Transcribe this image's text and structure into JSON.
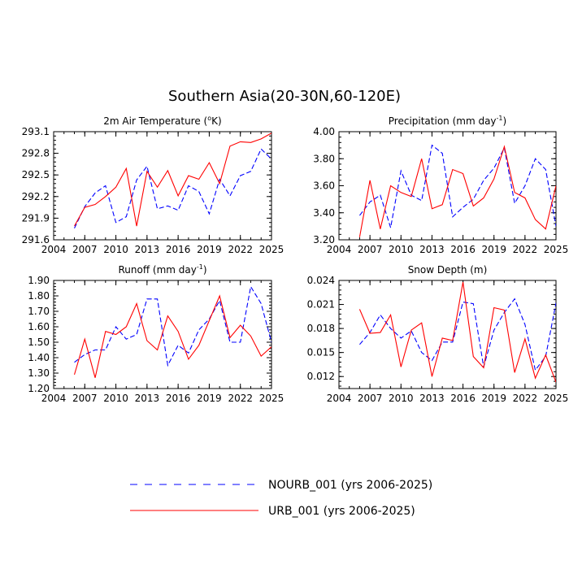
{
  "title": "Southern Asia(20-30N,60-120E)",
  "series_styles": [
    {
      "name": "NOURB_001",
      "color": "#0000ff",
      "dash": "dashed"
    },
    {
      "name": "URB_001",
      "color": "#ff0000",
      "dash": "solid"
    }
  ],
  "legend": {
    "entries": [
      {
        "label": "NOURB_001 (yrs 2006-2025)",
        "color": "#0000ff",
        "dash": "dashed"
      },
      {
        "label": "URB_001 (yrs 2006-2025)",
        "color": "#ff0000",
        "dash": "solid"
      }
    ]
  },
  "chart_data": [
    {
      "type": "line",
      "title": "2m Air Temperature (",
      "title_sup": "o",
      "title_after": "K)",
      "xlim": [
        2004,
        2025
      ],
      "xticks": [
        "2004",
        "2007",
        "2010",
        "2013",
        "2016",
        "2019",
        "2022",
        "2025"
      ],
      "ylim": [
        291.6,
        293.1
      ],
      "yticks": [
        "291.6",
        "291.9",
        "292.2",
        "292.5",
        "292.8",
        "293.1"
      ],
      "x": [
        2006,
        2007,
        2008,
        2009,
        2010,
        2011,
        2012,
        2013,
        2014,
        2015,
        2016,
        2017,
        2018,
        2019,
        2020,
        2021,
        2022,
        2023,
        2024,
        2025
      ],
      "series": [
        {
          "name": "NOURB_001",
          "values": [
            291.76,
            292.06,
            292.25,
            292.35,
            291.84,
            291.92,
            292.43,
            292.62,
            292.03,
            292.07,
            292.01,
            292.35,
            292.27,
            291.96,
            292.44,
            292.21,
            292.49,
            292.55,
            292.86,
            292.72
          ]
        },
        {
          "name": "URB_001",
          "values": [
            291.79,
            292.05,
            292.09,
            292.2,
            292.33,
            292.59,
            291.79,
            292.55,
            292.33,
            292.56,
            292.21,
            292.49,
            292.44,
            292.67,
            292.38,
            292.9,
            292.96,
            292.95,
            293.0,
            293.08
          ]
        }
      ]
    },
    {
      "type": "line",
      "title": "Precipitation (mm day",
      "title_sup": "-1",
      "title_after": ")",
      "xlim": [
        2004,
        2025
      ],
      "xticks": [
        "2004",
        "2007",
        "2010",
        "2013",
        "2016",
        "2019",
        "2022",
        "2025"
      ],
      "ylim": [
        3.2,
        4.0
      ],
      "yticks": [
        "3.20",
        "3.40",
        "3.60",
        "3.80",
        "4.00"
      ],
      "x": [
        2006,
        2007,
        2008,
        2009,
        2010,
        2011,
        2012,
        2013,
        2014,
        2015,
        2016,
        2017,
        2018,
        2019,
        2020,
        2021,
        2022,
        2023,
        2024,
        2025
      ],
      "series": [
        {
          "name": "NOURB_001",
          "values": [
            3.38,
            3.48,
            3.53,
            3.29,
            3.71,
            3.53,
            3.49,
            3.9,
            3.84,
            3.37,
            3.44,
            3.5,
            3.64,
            3.73,
            3.88,
            3.47,
            3.6,
            3.8,
            3.72,
            3.3
          ]
        },
        {
          "name": "URB_001",
          "values": [
            3.22,
            3.64,
            3.28,
            3.6,
            3.55,
            3.52,
            3.8,
            3.43,
            3.46,
            3.72,
            3.69,
            3.45,
            3.51,
            3.65,
            3.89,
            3.55,
            3.51,
            3.35,
            3.28,
            3.6
          ]
        }
      ]
    },
    {
      "type": "line",
      "title": "Runoff (mm day",
      "title_sup": "-1",
      "title_after": ")",
      "xlim": [
        2004,
        2025
      ],
      "xticks": [
        "2004",
        "2007",
        "2010",
        "2013",
        "2016",
        "2019",
        "2022",
        "2025"
      ],
      "ylim": [
        1.2,
        1.9
      ],
      "yticks": [
        "1.20",
        "1.30",
        "1.40",
        "1.50",
        "1.60",
        "1.70",
        "1.80",
        "1.90"
      ],
      "x": [
        2006,
        2007,
        2008,
        2009,
        2010,
        2011,
        2012,
        2013,
        2014,
        2015,
        2016,
        2017,
        2018,
        2019,
        2020,
        2021,
        2022,
        2023,
        2024,
        2025
      ],
      "series": [
        {
          "name": "NOURB_001",
          "values": [
            1.37,
            1.42,
            1.45,
            1.45,
            1.6,
            1.52,
            1.55,
            1.78,
            1.78,
            1.35,
            1.48,
            1.43,
            1.58,
            1.65,
            1.77,
            1.5,
            1.5,
            1.86,
            1.75,
            1.5
          ]
        },
        {
          "name": "URB_001",
          "values": [
            1.29,
            1.52,
            1.27,
            1.57,
            1.55,
            1.6,
            1.75,
            1.51,
            1.45,
            1.67,
            1.57,
            1.39,
            1.48,
            1.64,
            1.8,
            1.53,
            1.61,
            1.54,
            1.41,
            1.47
          ]
        }
      ]
    },
    {
      "type": "line",
      "title": "Snow Depth (m)",
      "title_sup": "",
      "title_after": "",
      "xlim": [
        2004,
        2025
      ],
      "xticks": [
        "2004",
        "2007",
        "2010",
        "2013",
        "2016",
        "2019",
        "2022",
        "2025"
      ],
      "ylim": [
        0.0105,
        0.024
      ],
      "yticks": [
        "0.012",
        "0.015",
        "0.018",
        "0.021",
        "0.024"
      ],
      "x": [
        2006,
        2007,
        2008,
        2009,
        2010,
        2011,
        2012,
        2013,
        2014,
        2015,
        2016,
        2017,
        2018,
        2019,
        2020,
        2021,
        2022,
        2023,
        2024,
        2025
      ],
      "series": [
        {
          "name": "NOURB_001",
          "values": [
            0.016,
            0.0175,
            0.0197,
            0.018,
            0.0168,
            0.0177,
            0.015,
            0.014,
            0.0163,
            0.0163,
            0.0213,
            0.0211,
            0.0132,
            0.0178,
            0.02,
            0.0217,
            0.0185,
            0.0128,
            0.0145,
            0.0212
          ]
        },
        {
          "name": "URB_001",
          "values": [
            0.0204,
            0.0174,
            0.0175,
            0.0197,
            0.0132,
            0.0178,
            0.0187,
            0.012,
            0.0168,
            0.0165,
            0.0238,
            0.0145,
            0.0131,
            0.0206,
            0.0203,
            0.0125,
            0.0167,
            0.0118,
            0.0147,
            0.0113
          ]
        }
      ]
    }
  ]
}
